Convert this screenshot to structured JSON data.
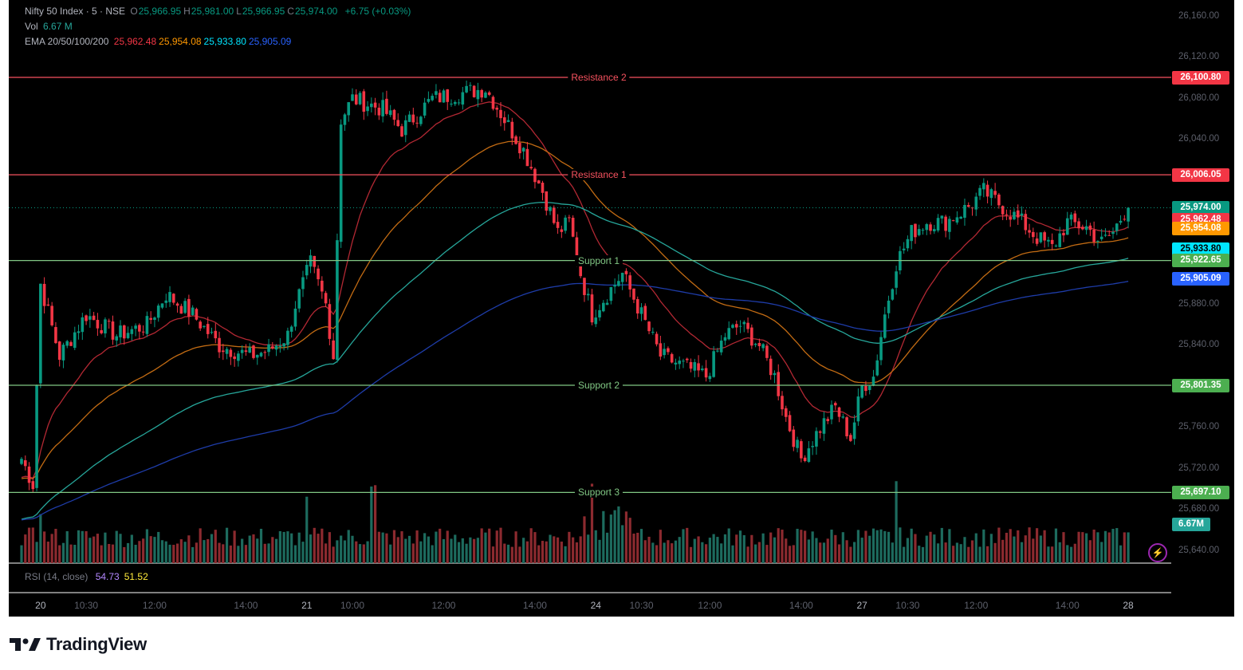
{
  "legend": {
    "symbol": "Nifty 50 Index · 5 · NSE",
    "ohlc": [
      {
        "k": "O",
        "v": "25,966.95"
      },
      {
        "k": "H",
        "v": "25,981.00"
      },
      {
        "k": "L",
        "v": "25,966.95"
      },
      {
        "k": "C",
        "v": "25,974.00"
      }
    ],
    "change": "+6.75 (+0.03%)",
    "vol_label": "Vol",
    "vol_value": "6.67 M",
    "ema_label": "EMA 20/50/100/200",
    "ema_values": [
      {
        "v": "25,962.48",
        "color": "#f23645"
      },
      {
        "v": "25,954.08",
        "color": "#ff9800"
      },
      {
        "v": "25,933.80",
        "color": "#00e5ff"
      },
      {
        "v": "25,905.09",
        "color": "#2962ff"
      }
    ],
    "rsi_label": "RSI (14, close)",
    "rsi_values": [
      {
        "v": "54.73",
        "color": "#b388ff"
      },
      {
        "v": "51.52",
        "color": "#ffeb3b"
      }
    ]
  },
  "price_axis": [
    "26,160.00",
    "26,120.00",
    "26,080.00",
    "26,040.00",
    "25,880.00",
    "25,840.00",
    "25,760.00",
    "25,720.00",
    "25,680.00",
    "25,640.00"
  ],
  "price_tags": [
    {
      "label": "26,100.80",
      "bg": "#f23645",
      "price": 26100.8
    },
    {
      "label": "26,006.05",
      "bg": "#f23645",
      "price": 26006.05
    },
    {
      "label": "25,974.00",
      "bg": "#089981",
      "price": 25974.0
    },
    {
      "label": "25,962.48",
      "bg": "#f23645",
      "price": 25962.48
    },
    {
      "label": "25,954.08",
      "bg": "#ff9800",
      "price": 25954.08
    },
    {
      "label": "25,933.80",
      "bg": "#00e5ff",
      "price": 25933.8
    },
    {
      "label": "25,922.65",
      "bg": "#4caf50",
      "price": 25922.65
    },
    {
      "label": "25,905.09",
      "bg": "#2962ff",
      "price": 25905.09
    },
    {
      "label": "25,801.35",
      "bg": "#4caf50",
      "price": 25801.35
    },
    {
      "label": "25,697.10",
      "bg": "#4caf50",
      "price": 25697.1
    }
  ],
  "volume_tag": "6.67M",
  "time_axis": [
    {
      "t": "20",
      "x_bar": 5,
      "day": true
    },
    {
      "t": "10:30",
      "x_bar": 17
    },
    {
      "t": "12:00",
      "x_bar": 35
    },
    {
      "t": "14:00",
      "x_bar": 59
    },
    {
      "t": "21",
      "x_bar": 75,
      "day": true
    },
    {
      "t": "10:00",
      "x_bar": 87
    },
    {
      "t": "12:00",
      "x_bar": 111
    },
    {
      "t": "14:00",
      "x_bar": 135
    },
    {
      "t": "24",
      "x_bar": 151,
      "day": true
    },
    {
      "t": "10:30",
      "x_bar": 163
    },
    {
      "t": "12:00",
      "x_bar": 181
    },
    {
      "t": "14:00",
      "x_bar": 205
    },
    {
      "t": "27",
      "x_bar": 221,
      "day": true
    },
    {
      "t": "10:30",
      "x_bar": 233
    },
    {
      "t": "12:00",
      "x_bar": 251
    },
    {
      "t": "14:00",
      "x_bar": 275
    },
    {
      "t": "28",
      "x_bar": 291,
      "day": true
    }
  ],
  "brand": "TradingView",
  "chart_data": {
    "type": "line",
    "title": "Nifty 50 Index · 5 · NSE",
    "ylim": [
      25620,
      26175
    ],
    "x_unit": "5-minute bar index",
    "levels": [
      {
        "name": "Resistance 2",
        "value": 26100.8,
        "color": "#f7525f",
        "label_color": "#f7525f"
      },
      {
        "name": "Resistance 1",
        "value": 26006.05,
        "color": "#f7525f",
        "label_color": "#f7525f"
      },
      {
        "name": "Support 1",
        "value": 25922.65,
        "color": "#81c784",
        "label_color": "#81c784"
      },
      {
        "name": "Support 2",
        "value": 25801.35,
        "color": "#81c784",
        "label_color": "#81c784"
      },
      {
        "name": "Support 3",
        "value": 25697.1,
        "color": "#81c784",
        "label_color": "#81c784"
      }
    ],
    "last_price": 25974.0,
    "close_waypoints": [
      [
        0,
        25730
      ],
      [
        3,
        25705
      ],
      [
        5,
        25900
      ],
      [
        10,
        25830
      ],
      [
        17,
        25870
      ],
      [
        25,
        25850
      ],
      [
        33,
        25860
      ],
      [
        38,
        25890
      ],
      [
        45,
        25870
      ],
      [
        52,
        25840
      ],
      [
        60,
        25830
      ],
      [
        65,
        25835
      ],
      [
        70,
        25850
      ],
      [
        72,
        25880
      ],
      [
        76,
        25920
      ],
      [
        80,
        25880
      ],
      [
        82,
        25830
      ],
      [
        84,
        26060
      ],
      [
        87,
        26080
      ],
      [
        95,
        26070
      ],
      [
        100,
        26050
      ],
      [
        108,
        26080
      ],
      [
        115,
        26085
      ],
      [
        122,
        26090
      ],
      [
        127,
        26060
      ],
      [
        132,
        26030
      ],
      [
        137,
        25990
      ],
      [
        141,
        25950
      ],
      [
        144,
        25960
      ],
      [
        147,
        25910
      ],
      [
        150,
        25870
      ],
      [
        154,
        25890
      ],
      [
        158,
        25910
      ],
      [
        163,
        25870
      ],
      [
        168,
        25830
      ],
      [
        174,
        25820
      ],
      [
        180,
        25810
      ],
      [
        185,
        25850
      ],
      [
        189,
        25860
      ],
      [
        194,
        25840
      ],
      [
        198,
        25810
      ],
      [
        201,
        25770
      ],
      [
        205,
        25730
      ],
      [
        210,
        25760
      ],
      [
        214,
        25780
      ],
      [
        218,
        25750
      ],
      [
        221,
        25800
      ],
      [
        224,
        25810
      ],
      [
        227,
        25870
      ],
      [
        230,
        25920
      ],
      [
        234,
        25950
      ],
      [
        238,
        25960
      ],
      [
        243,
        25960
      ],
      [
        249,
        25975
      ],
      [
        253,
        25990
      ],
      [
        258,
        25975
      ],
      [
        263,
        25960
      ],
      [
        267,
        25945
      ],
      [
        271,
        25935
      ],
      [
        275,
        25960
      ],
      [
        280,
        25955
      ],
      [
        284,
        25940
      ],
      [
        287,
        25950
      ],
      [
        290,
        25970
      ],
      [
        291,
        25974
      ]
    ],
    "ema_series": [
      {
        "name": "EMA 20",
        "period": 20,
        "color": "#b22833",
        "last": 25962.48
      },
      {
        "name": "EMA 50",
        "period": 50,
        "color": "#c26b13",
        "last": 25954.08
      },
      {
        "name": "EMA 100",
        "period": 100,
        "color": "#26a69a",
        "last": 25933.8
      },
      {
        "name": "EMA 200",
        "period": 200,
        "color": "#1e3ca8",
        "last": 25905.09
      }
    ],
    "volume": {
      "last": "6.67M",
      "unit": "M"
    },
    "rsi": {
      "period": 14,
      "source": "close",
      "values": [
        54.73,
        51.52
      ]
    }
  }
}
